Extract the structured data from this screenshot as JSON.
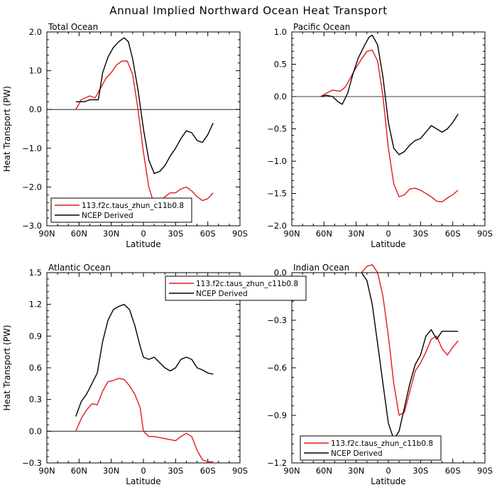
{
  "title": "Annual Implied Northward Ocean Heat Transport",
  "colors": {
    "model": "#e41a1c",
    "obs": "#000000"
  },
  "chart_data": [
    {
      "type": "line",
      "title": "Total Ocean",
      "xlabel": "Latitude",
      "ylabel": "Heat Transport (PW)",
      "xlim": [
        90,
        -90
      ],
      "ylim": [
        -3.0,
        2.0
      ],
      "xticks": [
        90,
        60,
        30,
        0,
        -30,
        -60,
        -90
      ],
      "xticklabels": [
        "90N",
        "60N",
        "30N",
        "0",
        "30S",
        "60S",
        "90S"
      ],
      "yticks": [
        -3.0,
        -2.0,
        -1.0,
        0.0,
        1.0,
        2.0
      ],
      "yticklabels": [
        "−3.0",
        "−2.0",
        "−1.0",
        "0.0",
        "1.0",
        "2.0"
      ],
      "legend": "bottom-left",
      "series": [
        {
          "name": "113.f2c.taus_zhun_c11b0.8",
          "color": "#e41a1c",
          "x": [
            63,
            58,
            50,
            45,
            40,
            35,
            30,
            25,
            20,
            15,
            10,
            5,
            0,
            -5,
            -10,
            -15,
            -20,
            -25,
            -30,
            -35,
            -40,
            -45,
            -50,
            -55,
            -60,
            -65
          ],
          "y": [
            0.0,
            0.25,
            0.35,
            0.3,
            0.55,
            0.8,
            0.95,
            1.15,
            1.25,
            1.25,
            0.9,
            0.0,
            -1.1,
            -2.0,
            -2.45,
            -2.45,
            -2.25,
            -2.15,
            -2.15,
            -2.05,
            -2.0,
            -2.1,
            -2.25,
            -2.35,
            -2.3,
            -2.15
          ]
        },
        {
          "name": "NCEP Derived",
          "color": "#000000",
          "x": [
            63,
            55,
            50,
            42,
            38,
            33,
            28,
            23,
            18,
            14,
            10,
            5,
            0,
            -5,
            -10,
            -15,
            -20,
            -25,
            -30,
            -35,
            -40,
            -45,
            -50,
            -55,
            -60,
            -65
          ],
          "y": [
            0.2,
            0.2,
            0.25,
            0.25,
            0.95,
            1.35,
            1.6,
            1.75,
            1.85,
            1.75,
            1.3,
            0.5,
            -0.5,
            -1.3,
            -1.65,
            -1.6,
            -1.45,
            -1.2,
            -1.0,
            -0.75,
            -0.55,
            -0.6,
            -0.8,
            -0.85,
            -0.65,
            -0.35
          ]
        }
      ]
    },
    {
      "type": "line",
      "title": "Pacific Ocean",
      "xlabel": "Latitude",
      "ylabel": "",
      "xlim": [
        90,
        -90
      ],
      "ylim": [
        -2.0,
        1.0
      ],
      "xticks": [
        90,
        60,
        30,
        0,
        -30,
        -60,
        -90
      ],
      "xticklabels": [
        "90N",
        "60N",
        "30N",
        "0",
        "30S",
        "60S",
        "90S"
      ],
      "yticks": [
        -2.0,
        -1.5,
        -1.0,
        -0.5,
        0.0,
        0.5,
        1.0
      ],
      "yticklabels": [
        "−2.0",
        "−1.5",
        "−1.0",
        "−0.5",
        "0.0",
        "0.5",
        "1.0"
      ],
      "legend": "bottom-left",
      "series": [
        {
          "name": "113.f2c.taus_zhun_c11b0.8",
          "color": "#e41a1c",
          "x": [
            63,
            58,
            52,
            45,
            40,
            35,
            30,
            25,
            20,
            15,
            10,
            5,
            0,
            -5,
            -10,
            -15,
            -20,
            -25,
            -30,
            -35,
            -40,
            -45,
            -50,
            -55,
            -60,
            -65
          ],
          "y": [
            0.0,
            0.05,
            0.1,
            0.08,
            0.15,
            0.3,
            0.45,
            0.58,
            0.7,
            0.72,
            0.55,
            0.0,
            -0.8,
            -1.35,
            -1.55,
            -1.52,
            -1.43,
            -1.42,
            -1.45,
            -1.5,
            -1.55,
            -1.62,
            -1.63,
            -1.57,
            -1.52,
            -1.45
          ]
        },
        {
          "name": "NCEP Derived",
          "color": "#000000",
          "x": [
            63,
            58,
            52,
            47,
            43,
            38,
            33,
            28,
            22,
            18,
            15,
            10,
            5,
            0,
            -5,
            -10,
            -15,
            -20,
            -25,
            -30,
            -35,
            -40,
            -45,
            -50,
            -55,
            -60,
            -65
          ],
          "y": [
            0.0,
            0.02,
            0.0,
            -0.08,
            -0.12,
            0.05,
            0.35,
            0.6,
            0.8,
            0.92,
            0.95,
            0.8,
            0.3,
            -0.4,
            -0.8,
            -0.9,
            -0.85,
            -0.75,
            -0.68,
            -0.65,
            -0.55,
            -0.45,
            -0.5,
            -0.55,
            -0.5,
            -0.4,
            -0.27
          ]
        }
      ]
    },
    {
      "type": "line",
      "title": "Atlantic Ocean",
      "xlabel": "Latitude",
      "ylabel": "Heat Transport (PW)",
      "xlim": [
        90,
        -90
      ],
      "ylim": [
        -0.3,
        1.5
      ],
      "xticks": [
        90,
        60,
        30,
        0,
        -30,
        -60,
        -90
      ],
      "xticklabels": [
        "90N",
        "60N",
        "30N",
        "0",
        "30S",
        "60S",
        "90S"
      ],
      "yticks": [
        -0.3,
        0.0,
        0.3,
        0.6,
        0.9,
        1.2,
        1.5
      ],
      "yticklabels": [
        "−0.3",
        "0.0",
        "0.3",
        "0.6",
        "0.9",
        "1.2",
        "1.5"
      ],
      "legend": "top-right",
      "series": [
        {
          "name": "113.f2c.taus_zhun_c11b0.8",
          "color": "#e41a1c",
          "x": [
            63,
            58,
            53,
            48,
            43,
            38,
            33,
            28,
            23,
            18,
            13,
            8,
            3,
            0,
            -5,
            -10,
            -15,
            -20,
            -25,
            -30,
            -35,
            -40,
            -45,
            -50,
            -55,
            -60,
            -65
          ],
          "y": [
            0.0,
            0.12,
            0.2,
            0.26,
            0.25,
            0.38,
            0.47,
            0.48,
            0.5,
            0.49,
            0.43,
            0.35,
            0.22,
            0.0,
            -0.05,
            -0.05,
            -0.06,
            -0.07,
            -0.08,
            -0.09,
            -0.05,
            -0.02,
            -0.05,
            -0.18,
            -0.27,
            -0.29,
            -0.29
          ]
        },
        {
          "name": "NCEP Derived",
          "color": "#000000",
          "x": [
            63,
            58,
            53,
            48,
            43,
            38,
            33,
            28,
            23,
            18,
            13,
            8,
            3,
            0,
            -5,
            -10,
            -15,
            -20,
            -25,
            -30,
            -35,
            -40,
            -45,
            -50,
            -55,
            -60,
            -65
          ],
          "y": [
            0.14,
            0.28,
            0.35,
            0.45,
            0.55,
            0.85,
            1.05,
            1.15,
            1.18,
            1.2,
            1.15,
            1.0,
            0.8,
            0.7,
            0.68,
            0.7,
            0.65,
            0.6,
            0.57,
            0.6,
            0.68,
            0.7,
            0.68,
            0.6,
            0.58,
            0.55,
            0.54
          ]
        }
      ]
    },
    {
      "type": "line",
      "title": "Indian Ocean",
      "xlabel": "Latitude",
      "ylabel": "",
      "xlim": [
        90,
        -90
      ],
      "ylim": [
        -1.2,
        0.0
      ],
      "xticks": [
        90,
        60,
        30,
        0,
        -30,
        -60,
        -90
      ],
      "xticklabels": [
        "90N",
        "60N",
        "30N",
        "0",
        "30S",
        "60S",
        "90S"
      ],
      "yticks": [
        -1.2,
        -0.9,
        -0.6,
        -0.3,
        0.0
      ],
      "yticklabels": [
        "−1.2",
        "−0.9",
        "−0.6",
        "−0.3",
        "0.0"
      ],
      "legend": "bottom-left",
      "series": [
        {
          "name": "113.f2c.taus_zhun_c11b0.8",
          "color": "#e41a1c",
          "x": [
            25,
            20,
            15,
            10,
            5,
            0,
            -5,
            -10,
            -15,
            -20,
            -25,
            -30,
            -35,
            -40,
            -45,
            -50,
            -55,
            -60,
            -65
          ],
          "y": [
            0.0,
            0.04,
            0.05,
            0.0,
            -0.15,
            -0.4,
            -0.7,
            -0.9,
            -0.88,
            -0.75,
            -0.62,
            -0.57,
            -0.5,
            -0.42,
            -0.4,
            -0.48,
            -0.52,
            -0.47,
            -0.43
          ]
        },
        {
          "name": "NCEP Derived",
          "color": "#000000",
          "x": [
            25,
            20,
            15,
            10,
            5,
            0,
            -5,
            -10,
            -15,
            -20,
            -25,
            -30,
            -35,
            -40,
            -45,
            -50,
            -55,
            -60,
            -65
          ],
          "y": [
            0.0,
            -0.05,
            -0.2,
            -0.45,
            -0.7,
            -0.95,
            -1.05,
            -1.0,
            -0.85,
            -0.7,
            -0.58,
            -0.52,
            -0.4,
            -0.36,
            -0.42,
            -0.37,
            -0.37,
            -0.37,
            -0.37
          ]
        }
      ]
    }
  ]
}
